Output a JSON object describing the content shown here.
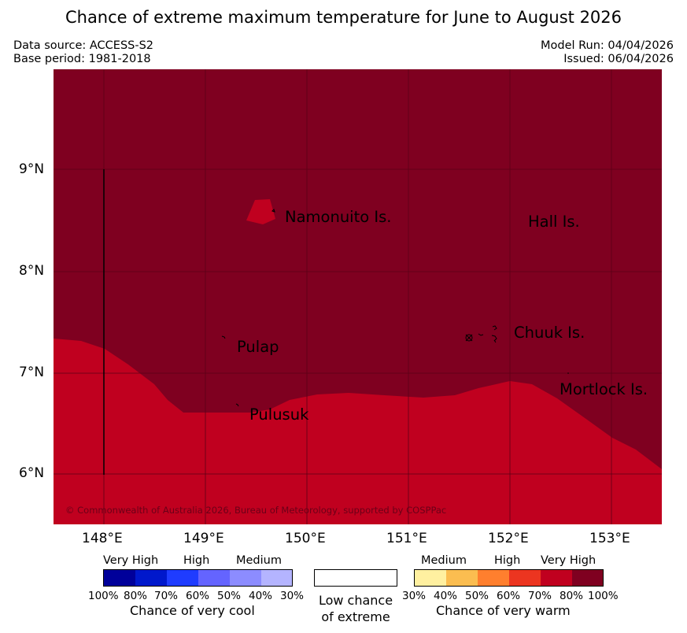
{
  "title": "Chance of extreme maximum temperature for June to August 2026",
  "header": {
    "data_source": "Data source: ACCESS-S2",
    "base_period": "Base period: 1981-2018",
    "model_run": "Model Run: 04/04/2026",
    "issued": "Issued: 06/04/2026"
  },
  "map": {
    "lat_ticks": [
      "9°N",
      "8°N",
      "7°N",
      "6°N"
    ],
    "lon_ticks": [
      "148°E",
      "149°E",
      "150°E",
      "151°E",
      "152°E",
      "153°E"
    ],
    "places": {
      "namonuito": "Namonuito Is.",
      "hall": "Hall Is.",
      "pulap": "Pulap",
      "chuuk": "Chuuk Is.",
      "mortlock": "Mortlock Is.",
      "pulusuk": "Pulusuk"
    },
    "copyright": "© Commonwealth of Australia 2026, Bureau of Meteorology, supported by COSPPac",
    "colors": {
      "very_high_80_100": "#7f0020",
      "very_high_70_80": "#c0001f"
    }
  },
  "legend": {
    "cool": {
      "levels": [
        "Very High",
        "High",
        "Medium"
      ],
      "ticks": [
        "100%",
        "80%",
        "70%",
        "60%",
        "50%",
        "40%",
        "30%"
      ],
      "title": "Chance of very cool",
      "colors": [
        "#00009a",
        "#0018cc",
        "#1f3cff",
        "#6464ff",
        "#8c8cff",
        "#b4b4ff"
      ]
    },
    "neutral": {
      "line1": "Low chance",
      "line2": "of extreme"
    },
    "warm": {
      "levels": [
        "Medium",
        "High",
        "Very High"
      ],
      "ticks": [
        "30%",
        "40%",
        "50%",
        "60%",
        "70%",
        "80%",
        "100%"
      ],
      "title": "Chance of very warm",
      "colors": [
        "#fff0a0",
        "#fbbd50",
        "#ff7f2e",
        "#ec3520",
        "#c0001f",
        "#7f0020"
      ]
    }
  }
}
